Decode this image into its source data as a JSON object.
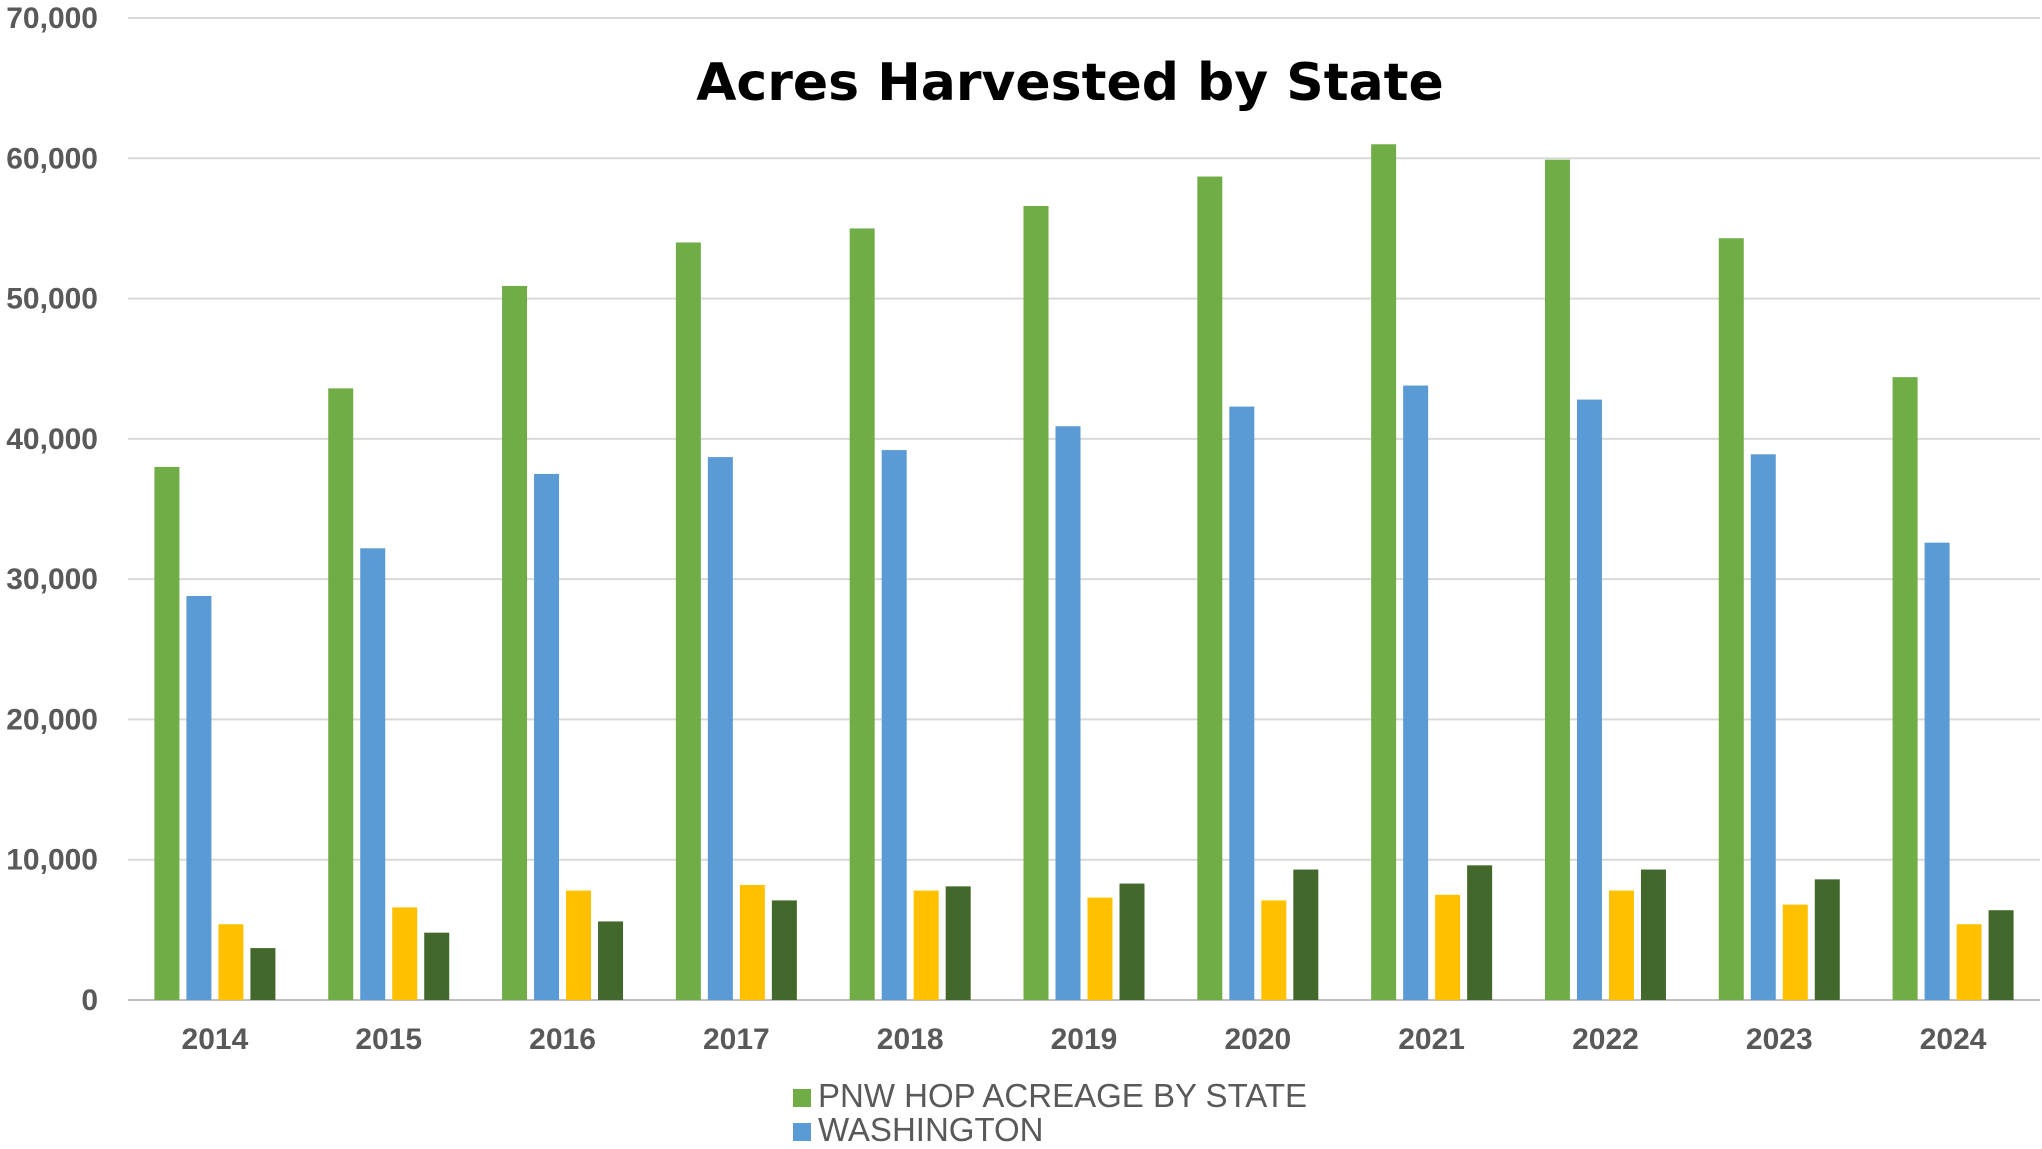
{
  "chart_data": {
    "type": "bar",
    "title": "Acres Harvested by State",
    "xlabel": "",
    "ylabel": "",
    "ylim": [
      0,
      70000
    ],
    "yticks": [
      0,
      10000,
      20000,
      30000,
      40000,
      50000,
      60000,
      70000
    ],
    "ytick_labels": [
      "0",
      "10,000",
      "20,000",
      "30,000",
      "40,000",
      "50,000",
      "60,000",
      "70,000"
    ],
    "grid": true,
    "legend_position": "bottom",
    "categories": [
      "2014",
      "2015",
      "2016",
      "2017",
      "2018",
      "2019",
      "2020",
      "2021",
      "2022",
      "2023",
      "2024"
    ],
    "series": [
      {
        "name": "PNW HOP ACREAGE BY STATE",
        "color": "#70ad47",
        "in_legend": true,
        "values": [
          38000,
          43600,
          50900,
          54000,
          55000,
          56600,
          58700,
          61000,
          59900,
          54300,
          44400
        ]
      },
      {
        "name": "WASHINGTON",
        "color": "#5b9bd5",
        "in_legend": true,
        "values": [
          28800,
          32200,
          37500,
          38700,
          39200,
          40900,
          42300,
          43800,
          42800,
          38900,
          32600
        ]
      },
      {
        "color": "#ffc000",
        "in_legend": false,
        "values": [
          5400,
          6600,
          7800,
          8200,
          7800,
          7300,
          7100,
          7500,
          7800,
          6800,
          5400
        ]
      },
      {
        "color": "#43682b",
        "in_legend": false,
        "values": [
          3700,
          4800,
          5600,
          7100,
          8100,
          8300,
          9300,
          9600,
          9300,
          8600,
          6400
        ]
      }
    ]
  }
}
